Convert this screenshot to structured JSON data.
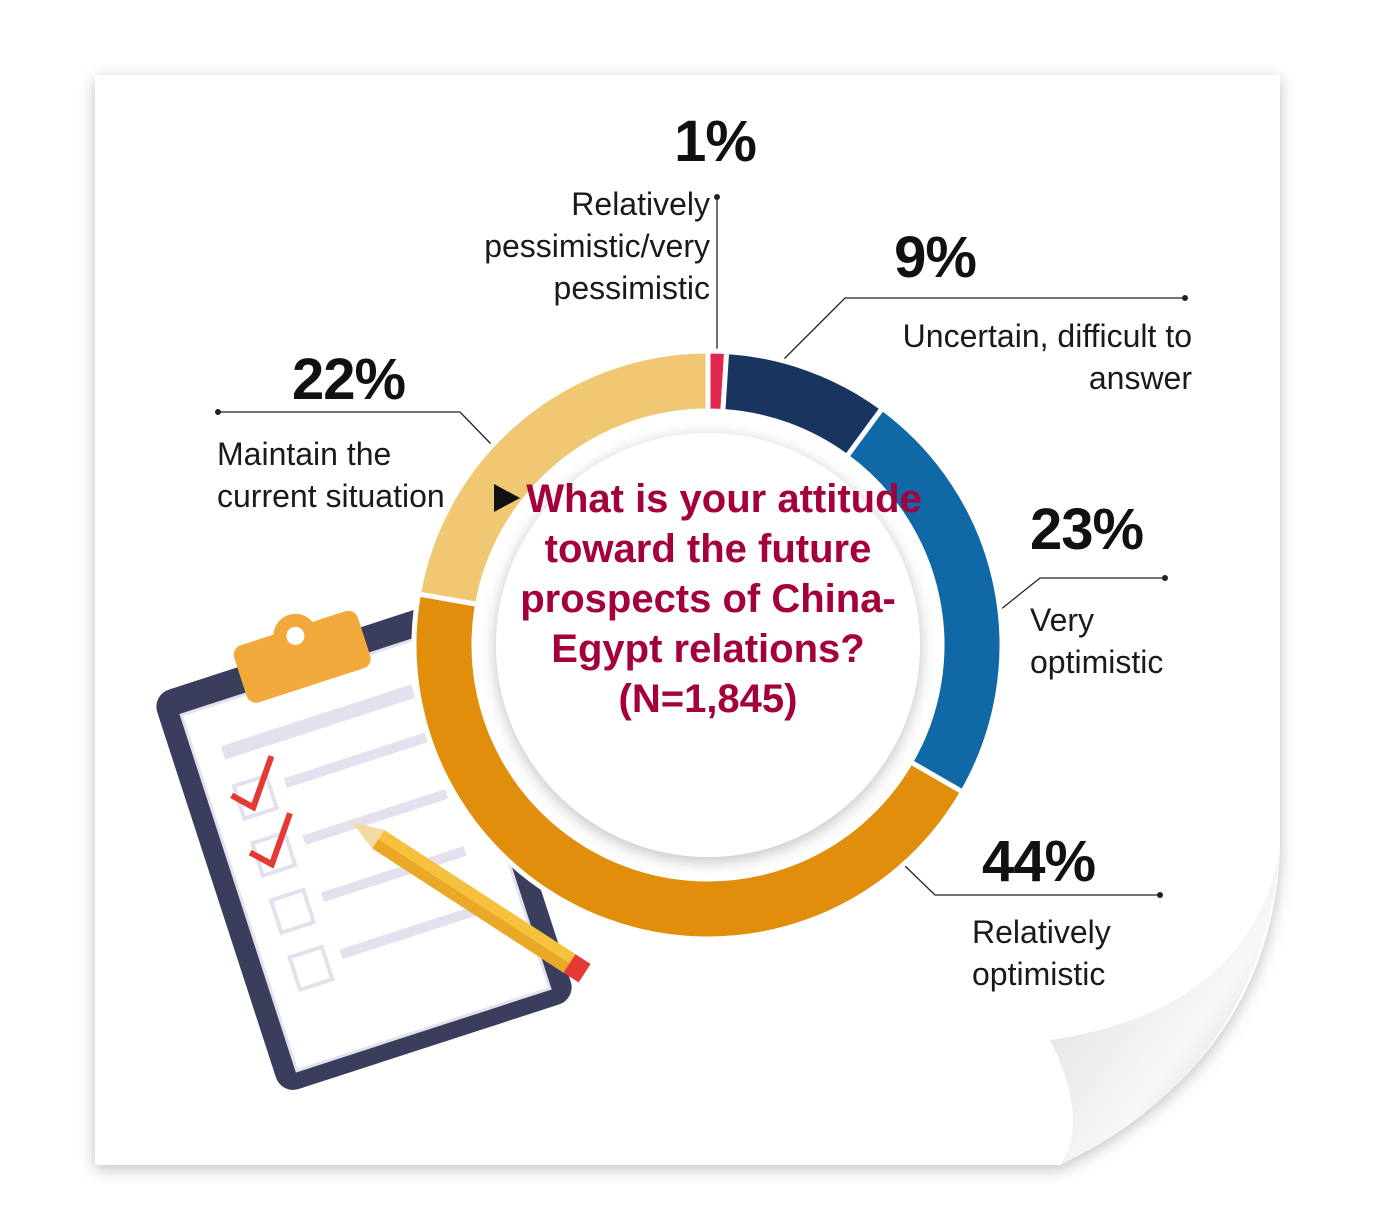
{
  "chart_data": {
    "type": "donut",
    "title": "What is your attitude toward the future prospects of China-Egypt relations? (N=1,845)",
    "categories": [
      "Relatively pessimistic/very pessimistic",
      "Uncertain, difficult to answer",
      "Very optimistic",
      "Relatively optimistic",
      "Maintain the current situation"
    ],
    "values": [
      1,
      9,
      23,
      44,
      22
    ],
    "value_labels": [
      "1%",
      "9%",
      "23%",
      "44%",
      "22%"
    ],
    "colors": [
      "#e2264d",
      "#17355f",
      "#1069a6",
      "#e08e0b",
      "#f0c873"
    ]
  }
}
